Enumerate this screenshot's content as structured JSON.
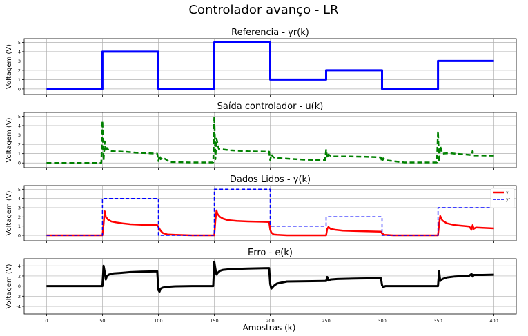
{
  "figure": {
    "title": "Controlador avanço - LR",
    "xlabel": "Amostras (k)"
  },
  "colors": {
    "yr": "#0000ff",
    "u": "#008000",
    "y": "#ff0000",
    "e": "#000000",
    "grid": "#b0b0b0"
  },
  "chart_data": [
    {
      "type": "line",
      "title": "Referencia - yr(k)",
      "xlabel": "",
      "ylabel": "Voltagem (V)",
      "xlim": [
        -20,
        420
      ],
      "ylim": [
        -0.6,
        5.4
      ],
      "yticks": [
        0,
        1,
        2,
        3,
        4,
        5
      ],
      "xticks": [
        0,
        50,
        100,
        150,
        200,
        250,
        300,
        350,
        400
      ],
      "show_xticklabels": false,
      "grid": true,
      "legend": "none",
      "series": [
        {
          "style": "solid",
          "width": 3,
          "color_key": "yr",
          "x": [
            0,
            50,
            50,
            100,
            100,
            150,
            150,
            200,
            200,
            250,
            250,
            300,
            300,
            350,
            350,
            400
          ],
          "y": [
            0,
            0,
            4,
            4,
            0,
            0,
            5,
            5,
            1,
            1,
            2,
            2,
            0,
            0,
            3,
            3
          ]
        }
      ]
    },
    {
      "type": "line",
      "title": "Saída controlador - u(k)",
      "xlabel": "",
      "ylabel": "Voltagem (V)",
      "xlim": [
        -20,
        420
      ],
      "ylim": [
        -0.5,
        5.4
      ],
      "yticks": [
        0,
        1,
        2,
        3,
        4,
        5
      ],
      "xticks": [
        0,
        50,
        100,
        150,
        200,
        250,
        300,
        350,
        400
      ],
      "show_xticklabels": false,
      "grid": true,
      "legend": "none",
      "series": [
        {
          "style": "dashed",
          "width": 2.5,
          "color_key": "u",
          "x": [
            0,
            49,
            50,
            51,
            52,
            53,
            54,
            56,
            60,
            70,
            80,
            90,
            99,
            100,
            101,
            102,
            104,
            110,
            130,
            149,
            150,
            151,
            152,
            154,
            158,
            165,
            180,
            199,
            200,
            201,
            203,
            210,
            230,
            249,
            250,
            251,
            252,
            255,
            270,
            290,
            299,
            300,
            301,
            303,
            320,
            349,
            350,
            351,
            352,
            354,
            360,
            375,
            380,
            381,
            382,
            390,
            400
          ],
          "y": [
            0,
            0,
            4.5,
            0.3,
            2.3,
            1.2,
            1.6,
            1.3,
            1.25,
            1.2,
            1.1,
            1.05,
            1.0,
            0.2,
            0.8,
            0.4,
            0.6,
            0.1,
            0.05,
            0.05,
            5.0,
            0.4,
            2.6,
            1.5,
            1.45,
            1.35,
            1.25,
            1.2,
            0.3,
            0.9,
            0.6,
            0.5,
            0.35,
            0.3,
            1.4,
            0.5,
            0.9,
            0.7,
            0.7,
            0.65,
            0.6,
            0.1,
            0.5,
            0.3,
            0.05,
            0.05,
            3.4,
            0.1,
            1.8,
            1.0,
            1.05,
            0.9,
            0.85,
            1.3,
            0.8,
            0.8,
            0.78
          ]
        }
      ]
    },
    {
      "type": "line",
      "title": "Dados Lidos - y(k)",
      "xlabel": "",
      "ylabel": "Voltagem (V)",
      "xlim": [
        -20,
        420
      ],
      "ylim": [
        -0.6,
        5.4
      ],
      "yticks": [
        0,
        1,
        2,
        3,
        4,
        5
      ],
      "xticks": [
        0,
        50,
        100,
        150,
        200,
        250,
        300,
        350,
        400
      ],
      "show_xticklabels": false,
      "grid": true,
      "legend": "top-right",
      "series": [
        {
          "name": "y",
          "style": "solid",
          "width": 2.5,
          "color_key": "y",
          "x": [
            0,
            50,
            51,
            52,
            53,
            55,
            58,
            62,
            68,
            75,
            85,
            99,
            100,
            102,
            104,
            108,
            115,
            130,
            150,
            151,
            152,
            153,
            155,
            158,
            162,
            170,
            180,
            199,
            200,
            201,
            203,
            206,
            215,
            250,
            251,
            252,
            254,
            258,
            265,
            280,
            299,
            300,
            302,
            310,
            350,
            351,
            352,
            354,
            358,
            365,
            378,
            380,
            381,
            382,
            384,
            390,
            400
          ],
          "y": [
            0,
            0,
            1.2,
            2.6,
            2.0,
            1.7,
            1.5,
            1.4,
            1.3,
            1.2,
            1.15,
            1.1,
            0.9,
            0.5,
            0.25,
            0.1,
            0.05,
            0,
            0,
            1.6,
            2.7,
            2.3,
            2.0,
            1.8,
            1.65,
            1.55,
            1.5,
            1.45,
            0.6,
            0.3,
            0.1,
            0.05,
            0,
            0,
            0.7,
            0.9,
            0.7,
            0.6,
            0.5,
            0.45,
            0.4,
            0.2,
            0.05,
            0,
            0,
            1.2,
            2.1,
            1.6,
            1.3,
            1.1,
            0.95,
            0.6,
            1.1,
            0.7,
            0.85,
            0.8,
            0.75
          ]
        },
        {
          "name": "yr",
          "style": "dashed",
          "width": 1.5,
          "color_key": "yr",
          "x": [
            0,
            50,
            50,
            100,
            100,
            150,
            150,
            200,
            200,
            250,
            250,
            300,
            300,
            350,
            350,
            400
          ],
          "y": [
            0,
            0,
            4,
            4,
            0,
            0,
            5,
            5,
            1,
            1,
            2,
            2,
            0,
            0,
            3,
            3
          ]
        }
      ]
    },
    {
      "type": "line",
      "title": "Erro - e(k)",
      "xlabel": "Amostras (k)",
      "ylabel": "Voltagem (V)",
      "xlim": [
        -20,
        420
      ],
      "ylim": [
        -5.5,
        5.4
      ],
      "yticks": [
        -4,
        -2,
        0,
        2,
        4
      ],
      "xticks": [
        0,
        50,
        100,
        150,
        200,
        250,
        300,
        350,
        400
      ],
      "show_xticklabels": true,
      "grid": true,
      "legend": "none",
      "series": [
        {
          "style": "solid",
          "width": 3,
          "color_key": "e",
          "x": [
            0,
            50,
            51,
            52,
            53,
            54,
            56,
            60,
            66,
            75,
            85,
            99,
            100,
            101,
            102,
            104,
            108,
            115,
            130,
            149,
            150,
            151,
            152,
            153,
            155,
            158,
            165,
            180,
            199,
            200,
            201,
            203,
            206,
            215,
            249,
            250,
            251,
            252,
            254,
            260,
            280,
            299,
            300,
            301,
            303,
            310,
            349,
            350,
            351,
            352,
            354,
            358,
            365,
            378,
            380,
            381,
            382,
            390,
            400
          ],
          "y": [
            0,
            0,
            4.0,
            2.8,
            1.3,
            2.0,
            2.3,
            2.5,
            2.6,
            2.75,
            2.85,
            2.9,
            -0.8,
            -1.1,
            -0.5,
            -0.3,
            -0.15,
            -0.05,
            0,
            0,
            4.8,
            3.4,
            2.3,
            2.6,
            3.0,
            3.2,
            3.35,
            3.45,
            3.55,
            0.4,
            -0.5,
            0.0,
            0.5,
            0.9,
            1.0,
            1.0,
            1.8,
            1.1,
            1.3,
            1.4,
            1.5,
            1.55,
            0.2,
            -0.2,
            0.0,
            0.0,
            0.0,
            0.0,
            2.9,
            1.0,
            1.4,
            1.7,
            1.9,
            2.05,
            2.4,
            1.9,
            2.2,
            2.2,
            2.25
          ]
        }
      ]
    }
  ]
}
